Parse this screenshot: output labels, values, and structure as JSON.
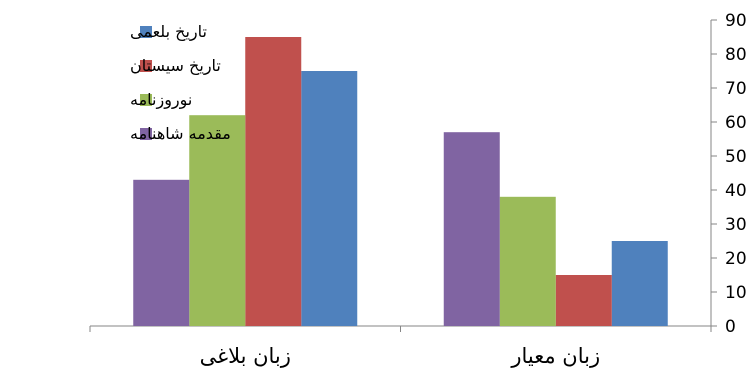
{
  "chart_data": {
    "type": "bar",
    "direction": "rtl",
    "y_axis_side": "right",
    "categories": [
      "زبان معیار",
      "زبان بلاغی"
    ],
    "series": [
      {
        "name": "تاریخ بلعمی",
        "color": "#4F81BD",
        "values": [
          25,
          75
        ]
      },
      {
        "name": "تاریخ سیستان",
        "color": "#C0504D",
        "values": [
          15,
          85
        ]
      },
      {
        "name": "نوروزنامه",
        "color": "#9BBB59",
        "values": [
          38,
          62
        ]
      },
      {
        "name": "مقدمه شاهنامه",
        "color": "#8064A2",
        "values": [
          57,
          43
        ]
      }
    ],
    "ylim": [
      0,
      90
    ],
    "yticks": [
      0,
      10,
      20,
      30,
      40,
      50,
      60,
      70,
      80,
      90
    ],
    "grid": false,
    "legend": "top-left"
  }
}
